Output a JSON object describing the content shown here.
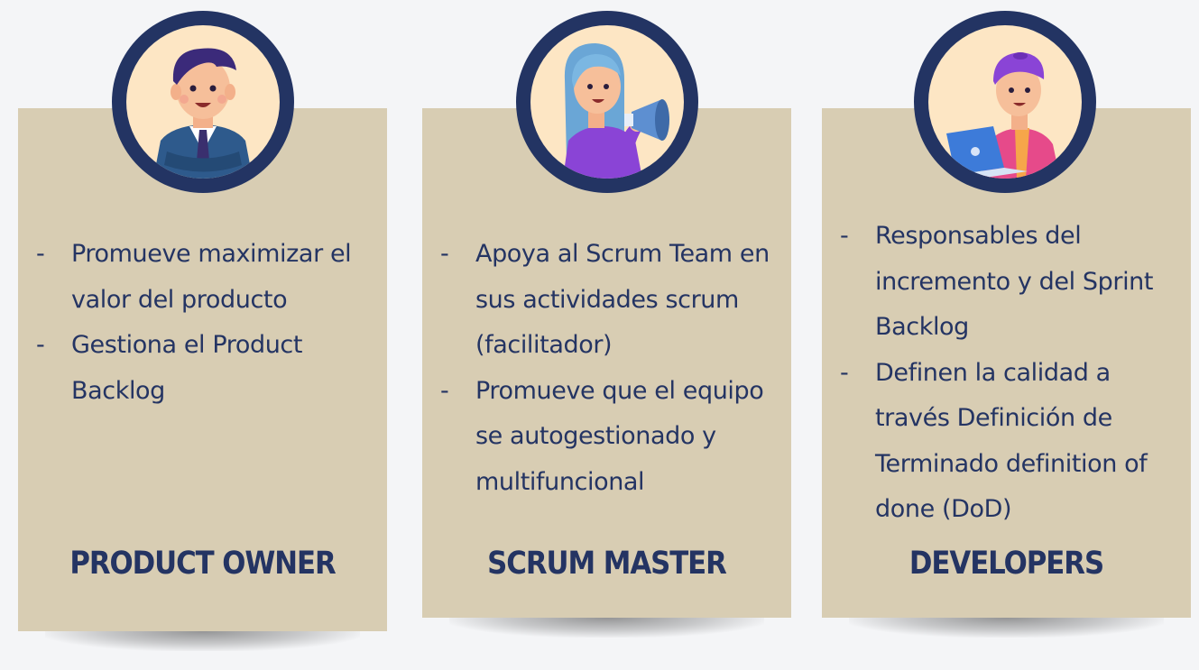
{
  "roles": [
    {
      "title": "PRODUCT OWNER",
      "avatar_icon": "businessman-icon",
      "bullets": [
        "Promueve maximizar el valor del producto",
        "Gestiona el Product Backlog"
      ]
    },
    {
      "title": "SCRUM MASTER",
      "avatar_icon": "megaphone-woman-icon",
      "bullets": [
        "Apoya al Scrum Team en sus actividades scrum (facilitador)",
        "Promueve que el equipo se autogestionado y multifuncional"
      ]
    },
    {
      "title": "DEVELOPERS",
      "avatar_icon": "laptop-developer-icon",
      "bullets": [
        "Responsables del incremento y del Sprint Backlog",
        "Definen la calidad a través Definición de Terminado definition of done (DoD)"
      ]
    }
  ],
  "bullet_marker": "-",
  "colors": {
    "background": "#f4f5f7",
    "card": "#d8cdb3",
    "text": "#243463",
    "avatar_ring": "#233463",
    "avatar_fill": "#fde6c4"
  }
}
